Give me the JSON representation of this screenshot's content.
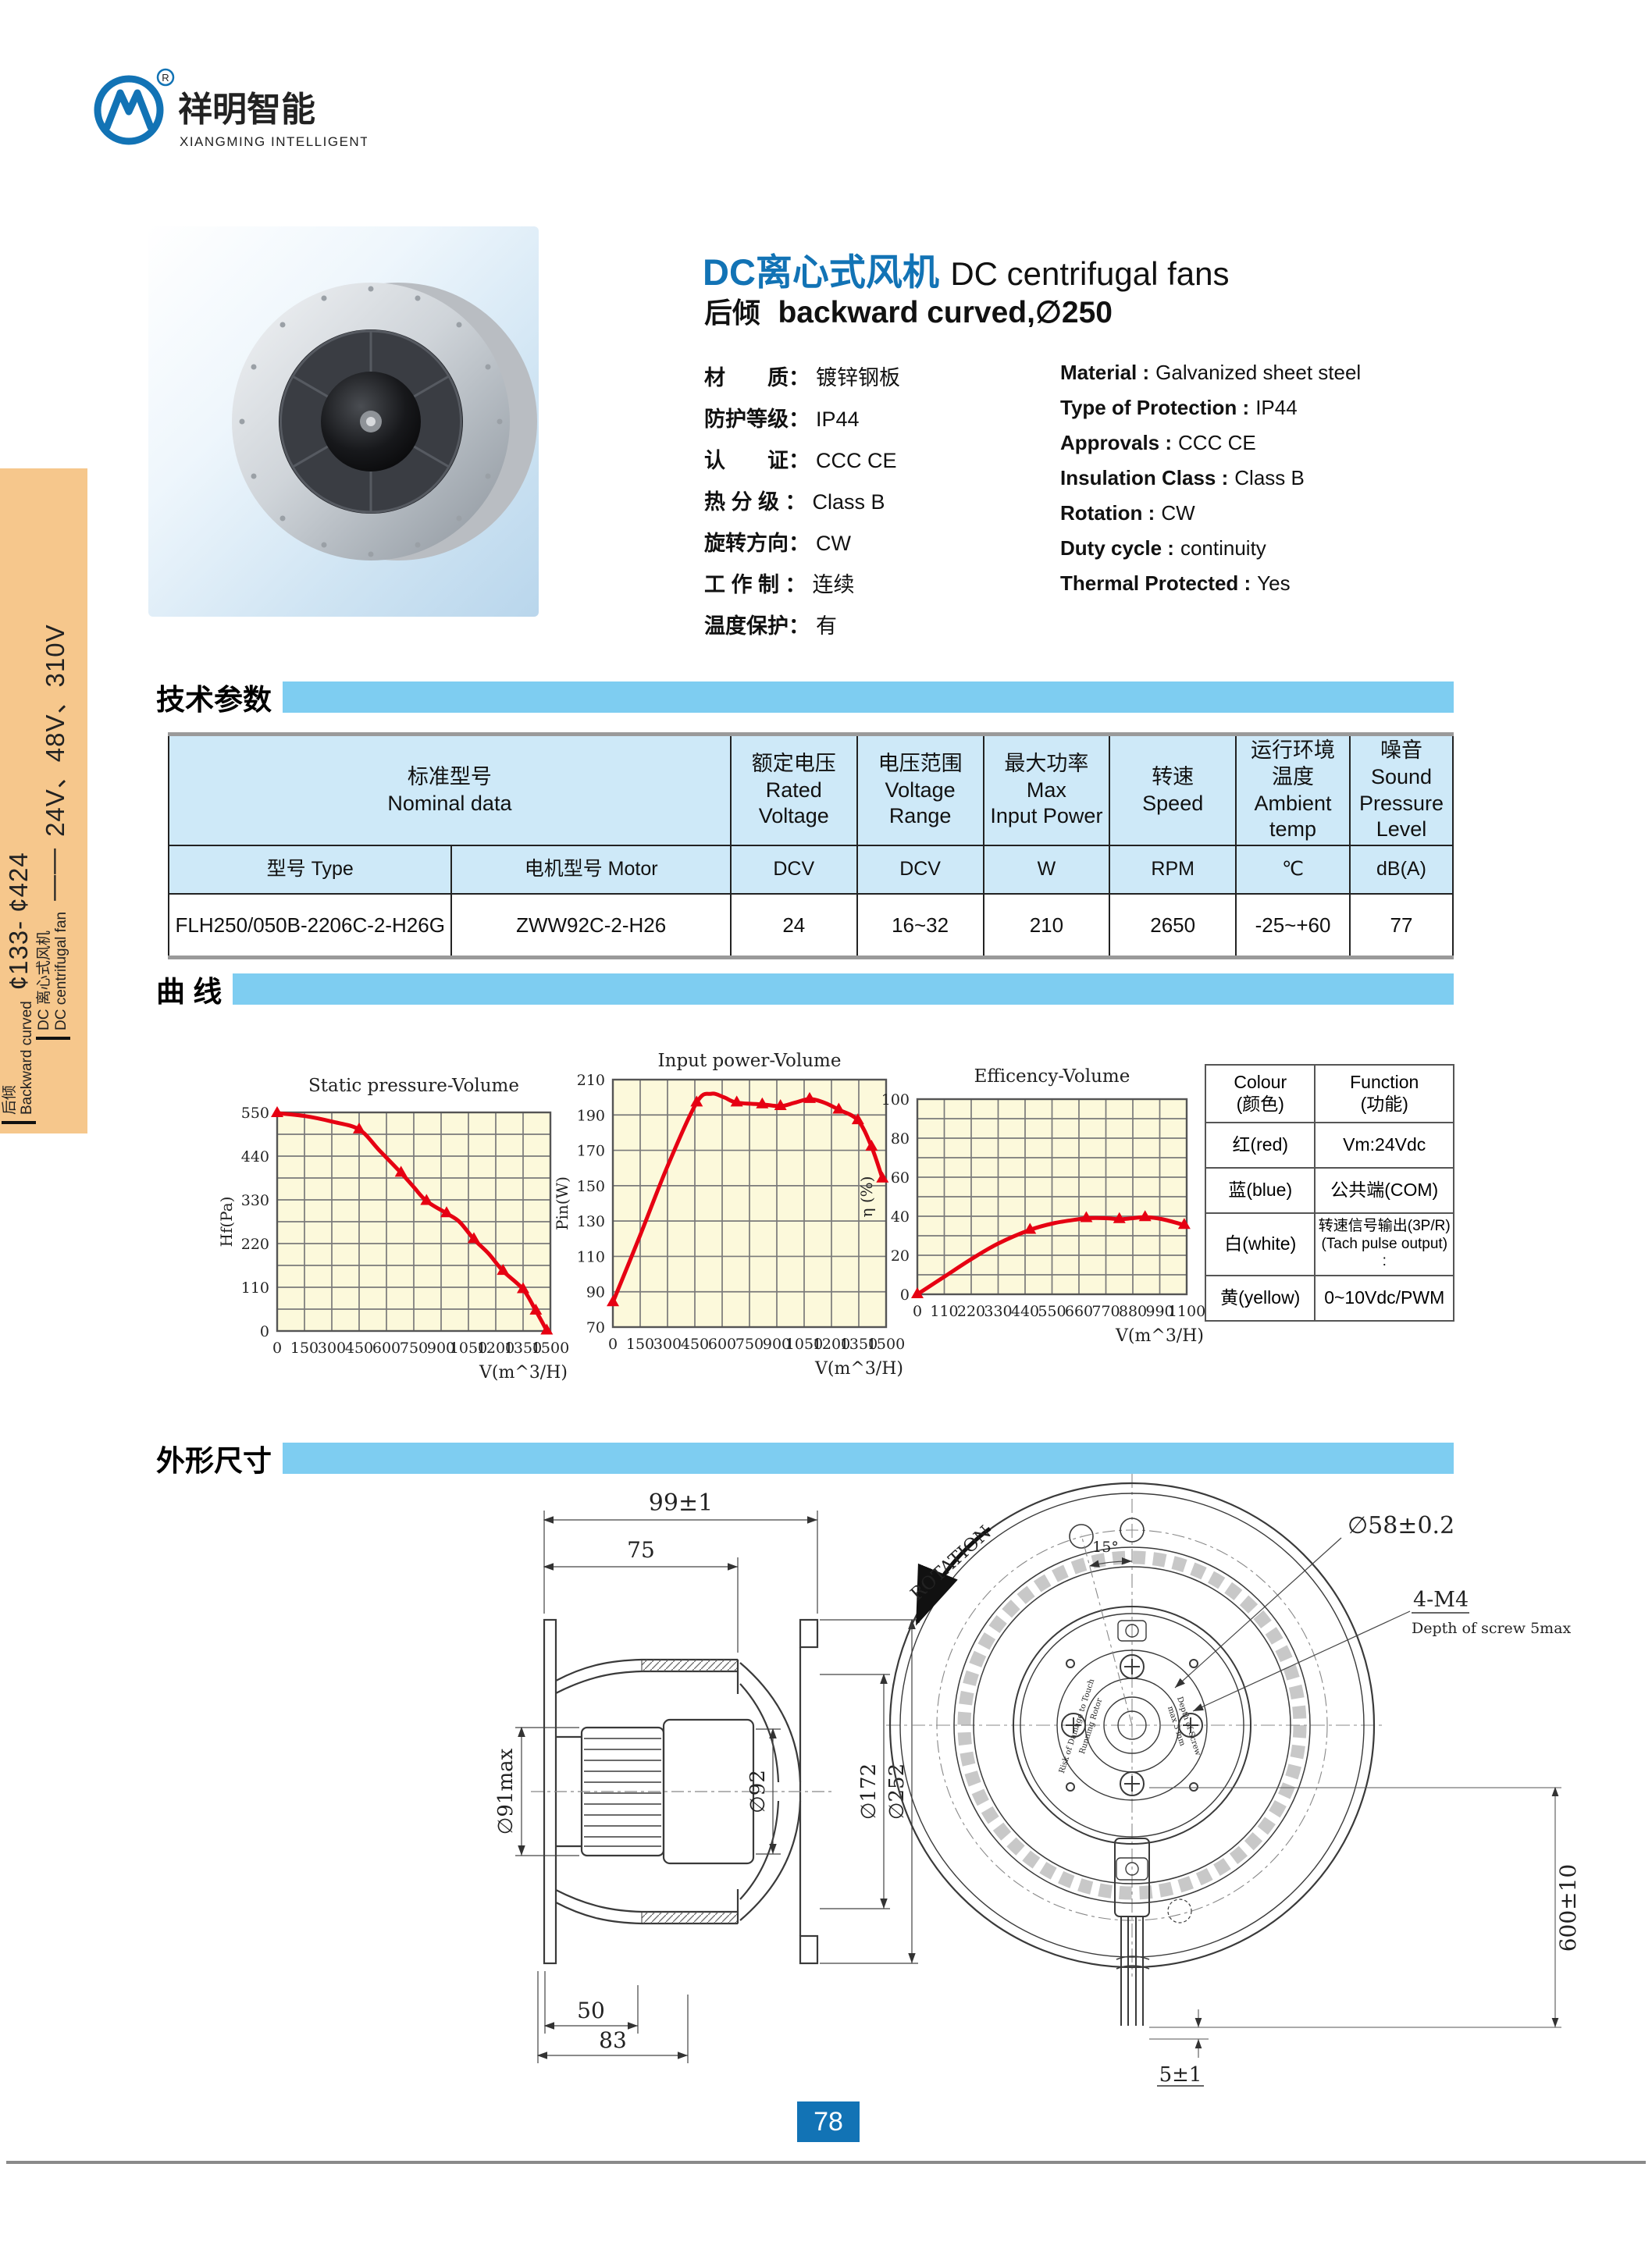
{
  "colors": {
    "accent_blue": "#1273B5",
    "bar_blue": "#7ECDF1",
    "table_header_blue": "#CEE9F8",
    "plot_bg": "#FCF9DB",
    "curve_red": "#E60012",
    "sidebar_orange": "#F6C78C"
  },
  "logo": {
    "brand_cn": "祥明智能",
    "brand_en": "XIANGMING INTELLIGENT",
    "registered": "R"
  },
  "sidebar": {
    "line1_cn": "DC 离心式风机",
    "line1_en": "DC centrifugal fan",
    "line1_dash": "——",
    "line1_range": "24V、48V、310V",
    "line2_cn": "后倾",
    "line2_en": "Backward curved",
    "line2_range": "¢133- ¢424"
  },
  "header": {
    "title_cn": "DC离心式风机",
    "title_en": "DC centrifugal fans",
    "subtitle_cn": "后倾",
    "subtitle_en": "backward curved,∅250",
    "specs_cn": [
      {
        "label": "材　　质：",
        "value": "镀锌钢板"
      },
      {
        "label": "防护等级：",
        "value": "IP44"
      },
      {
        "label": "认　　证：",
        "value": "CCC  CE"
      },
      {
        "label": "热 分 级 ：",
        "value": "Class  B"
      },
      {
        "label": "旋转方向：",
        "value": "CW"
      },
      {
        "label": "工 作 制 ：",
        "value": "连续"
      },
      {
        "label": "温度保护：",
        "value": "有"
      }
    ],
    "specs_en": [
      {
        "label": "Material :",
        "value": "Galvanized sheet steel"
      },
      {
        "label": "Type of Protection :",
        "value": "IP44"
      },
      {
        "label": "Approvals :",
        "value": "CCC  CE"
      },
      {
        "label": "Insulation Class :",
        "value": "Class  B"
      },
      {
        "label": "Rotation :",
        "value": "CW"
      },
      {
        "label": "Duty cycle :",
        "value": "continuity"
      },
      {
        "label": "Thermal  Protected :",
        "value": "Yes"
      }
    ]
  },
  "sections": {
    "tech": "技术参数",
    "curves": "曲  线",
    "dims": "外形尺寸"
  },
  "table": {
    "cols": [
      {
        "cn": "标准型号",
        "en": "Nominal  data"
      },
      {
        "cn": "额定电压",
        "en": "Rated",
        "en2": "Voltage"
      },
      {
        "cn": "电压范围",
        "en": "Voltage",
        "en2": "Range"
      },
      {
        "cn": "最大功率",
        "en": "Max",
        "en2": "Input Power"
      },
      {
        "cn": "转速",
        "en": "Speed"
      },
      {
        "cn": "运行环境",
        "cn2": "温度",
        "en": "Ambient",
        "en2": "temp"
      },
      {
        "cn": "噪音",
        "en": "Sound",
        "en2": "Pressure",
        "en3": "Level"
      }
    ],
    "units": [
      "型号 Type",
      "电机型号 Motor",
      "DCV",
      "DCV",
      "W",
      "RPM",
      "℃",
      "dB(A)"
    ],
    "row": [
      "FLH250/050B-2206C-2-H26G",
      "ZWW92C-2-H26",
      "24",
      "16~32",
      "210",
      "2650",
      "-25~+60",
      "77"
    ]
  },
  "chart_data": [
    {
      "type": "line",
      "title": "Static pressure-Volume",
      "xlabel": "V(m^3/H)",
      "ylabel": "Hf(Pa)",
      "xlim": [
        0,
        1500
      ],
      "ylim": [
        0,
        550
      ],
      "xgrid": 150,
      "ygrid": 55,
      "xtick": 150,
      "ytick": 110,
      "x_tick_labels": [
        0,
        150,
        300,
        450,
        600,
        750,
        900,
        1050,
        1200,
        1350,
        1500
      ],
      "y_tick_labels": [
        0,
        110,
        220,
        330,
        440,
        550
      ],
      "series": [
        {
          "name": "static pressure",
          "points": [
            [
              0,
              548
            ],
            [
              150,
              541
            ],
            [
              300,
              527
            ],
            [
              450,
              507
            ],
            [
              560,
              455
            ],
            [
              680,
              398
            ],
            [
              750,
              362
            ],
            [
              820,
              327
            ],
            [
              930,
              296
            ],
            [
              1000,
              275
            ],
            [
              1080,
              231
            ],
            [
              1160,
              195
            ],
            [
              1240,
              151
            ],
            [
              1350,
              105
            ],
            [
              1420,
              51
            ],
            [
              1480,
              1
            ]
          ],
          "markers": [
            [
              0,
              548
            ],
            [
              450,
              507
            ],
            [
              680,
              398
            ],
            [
              820,
              327
            ],
            [
              930,
              296
            ],
            [
              1080,
              231
            ],
            [
              1240,
              151
            ],
            [
              1350,
              105
            ],
            [
              1420,
              51
            ],
            [
              1480,
              1
            ]
          ]
        }
      ]
    },
    {
      "type": "line",
      "title": "Input power-Volume",
      "xlabel": "V(m^3/H)",
      "ylabel": "Pin(W)",
      "xlim": [
        0,
        1500
      ],
      "ylim": [
        70,
        210
      ],
      "xgrid": 150,
      "ygrid": 20,
      "xtick": 150,
      "ytick": 20,
      "x_tick_labels": [
        0,
        150,
        300,
        450,
        600,
        750,
        900,
        1050,
        1200,
        1350,
        1500
      ],
      "y_tick_labels": [
        70,
        90,
        110,
        130,
        150,
        170,
        190,
        210
      ],
      "series": [
        {
          "name": "input power",
          "points": [
            [
              0,
              84
            ],
            [
              150,
              122
            ],
            [
              300,
              161
            ],
            [
              460,
              197
            ],
            [
              540,
              202
            ],
            [
              610,
              200
            ],
            [
              680,
              197
            ],
            [
              820,
              196
            ],
            [
              920,
              195
            ],
            [
              1000,
              197
            ],
            [
              1080,
              199
            ],
            [
              1160,
              197
            ],
            [
              1240,
              193
            ],
            [
              1345,
              187
            ],
            [
              1420,
              172
            ],
            [
              1480,
              154
            ]
          ],
          "markers": [
            [
              0,
              84
            ],
            [
              460,
              197
            ],
            [
              680,
              197
            ],
            [
              820,
              196
            ],
            [
              920,
              195
            ],
            [
              1080,
              199
            ],
            [
              1240,
              193
            ],
            [
              1345,
              187
            ],
            [
              1420,
              172
            ],
            [
              1480,
              154
            ]
          ]
        }
      ]
    },
    {
      "type": "line",
      "title": "Efficency-Volume",
      "xlabel": "V(m^3/H)",
      "ylabel": "η (%)",
      "xlim": [
        0,
        1100
      ],
      "ylim": [
        0,
        100
      ],
      "xgrid": 110,
      "ygrid": 10,
      "xtick": 110,
      "ytick": 20,
      "x_tick_labels": [
        0,
        110,
        220,
        330,
        440,
        550,
        660,
        770,
        880,
        990,
        1100
      ],
      "y_tick_labels": [
        0,
        20,
        40,
        60,
        80,
        100
      ],
      "series": [
        {
          "name": "efficiency",
          "points": [
            [
              0,
              0
            ],
            [
              110,
              9
            ],
            [
              220,
              18
            ],
            [
              330,
              26
            ],
            [
              460,
              33
            ],
            [
              560,
              36.5
            ],
            [
              660,
              38.5
            ],
            [
              690,
              39
            ],
            [
              770,
              39
            ],
            [
              825,
              38.5
            ],
            [
              880,
              39
            ],
            [
              930,
              39.5
            ],
            [
              1000,
              38.5
            ],
            [
              1090,
              35.5
            ]
          ],
          "markers": [
            [
              0,
              0
            ],
            [
              460,
              33
            ],
            [
              690,
              39
            ],
            [
              825,
              38.5
            ],
            [
              930,
              39.5
            ],
            [
              1090,
              35.5
            ]
          ]
        }
      ]
    }
  ],
  "wire_table": {
    "h_col1": "Colour",
    "h_col1b": "(颜色)",
    "h_col2": "Function",
    "h_col2b": "(功能)",
    "rows": [
      {
        "colour": "红(red)",
        "fn": "Vm:24Vdc"
      },
      {
        "colour": "蓝(blue)",
        "fn": "公共端(COM)"
      },
      {
        "colour": "白(white)",
        "fn": "转速信号输出(3P/R)",
        "fn2": "(Tach pulse output) :"
      },
      {
        "colour": "黄(yellow)",
        "fn": "0~10Vdc/PWM"
      }
    ]
  },
  "side_view": {
    "d99": "99±1",
    "d75": "75",
    "d91": "∅91max",
    "d92": "∅92",
    "d172": "∅172",
    "d252": "∅252",
    "d50": "50",
    "d83": "83"
  },
  "front_view": {
    "rotation": "ROTATION",
    "angle": "15°",
    "d58": "∅58±0.2",
    "m4": "4-M4",
    "m4_note": "Depth of screw 5max",
    "cable": "600±10",
    "d5": "5±1",
    "hub_l1": "Risk of Damage to Touch",
    "hub_l2": "Running Rotor",
    "hub_r1": "Depth of Screw",
    "hub_r2": "max 5 mm"
  },
  "page": {
    "number": "78"
  }
}
